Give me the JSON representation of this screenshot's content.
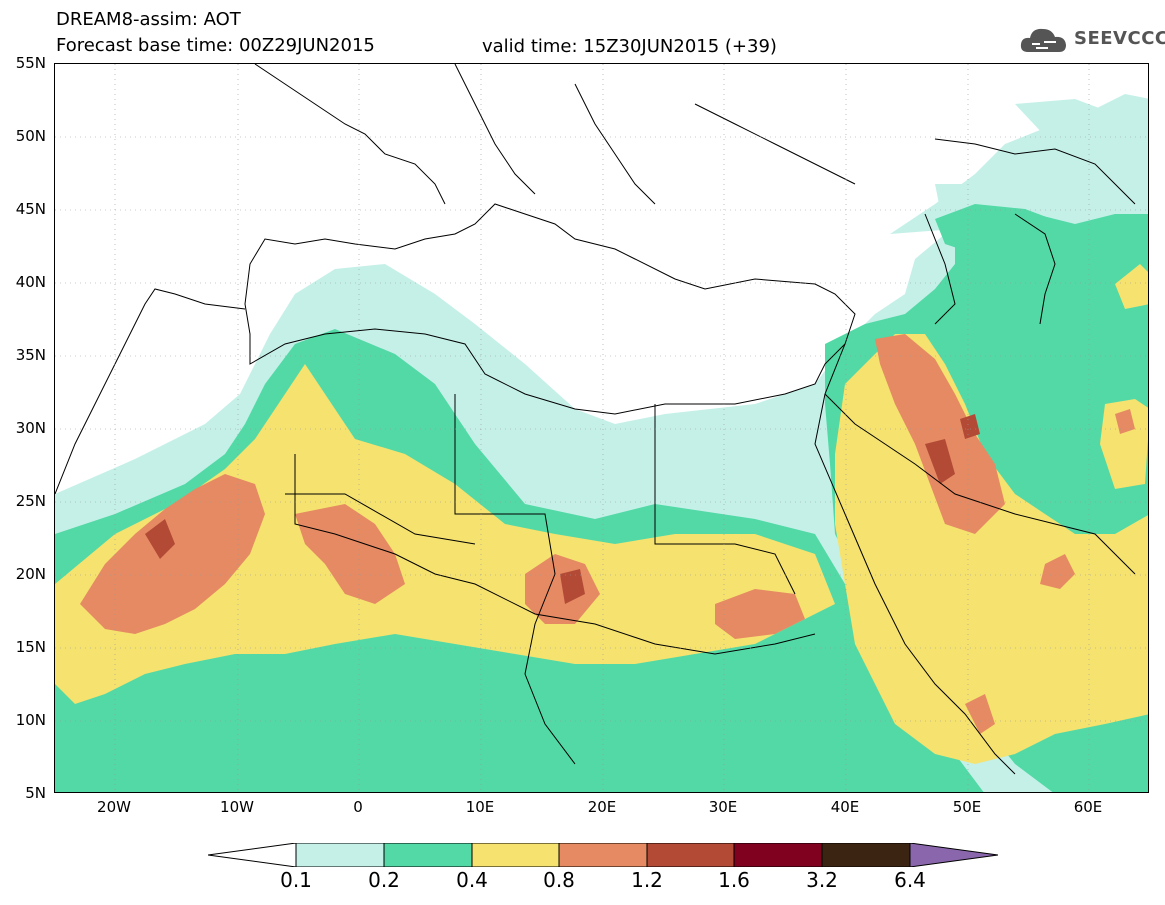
{
  "header": {
    "title_line1": "DREAM8-assim: AOT",
    "title_line2": "Forecast base time: 00Z29JUN2015",
    "valid_time": "valid time: 15Z30JUN2015 (+39)",
    "logo_text": "SEEVCCC"
  },
  "axes": {
    "lat_labels": [
      "55N",
      "50N",
      "45N",
      "40N",
      "35N",
      "30N",
      "25N",
      "20N",
      "15N",
      "10N",
      "5N"
    ],
    "lon_labels": [
      "20W",
      "10W",
      "0",
      "10E",
      "20E",
      "30E",
      "40E",
      "50E",
      "60E"
    ]
  },
  "colorbar": {
    "labels": [
      "0.1",
      "0.2",
      "0.4",
      "0.8",
      "1.2",
      "1.6",
      "3.2",
      "6.4"
    ],
    "colors": [
      "#ffffff",
      "#c5f0e8",
      "#52d9a6",
      "#f5e26f",
      "#e58a62",
      "#b24a36",
      "#800020",
      "#3b2412",
      "#8a67ad"
    ]
  },
  "colors": {
    "level_0_1": "#c5f0e8",
    "level_0_2": "#52d9a6",
    "level_0_4": "#f5e26f",
    "level_0_8": "#e58a62",
    "level_1_2": "#b24a36",
    "level_1_6": "#800020"
  }
}
